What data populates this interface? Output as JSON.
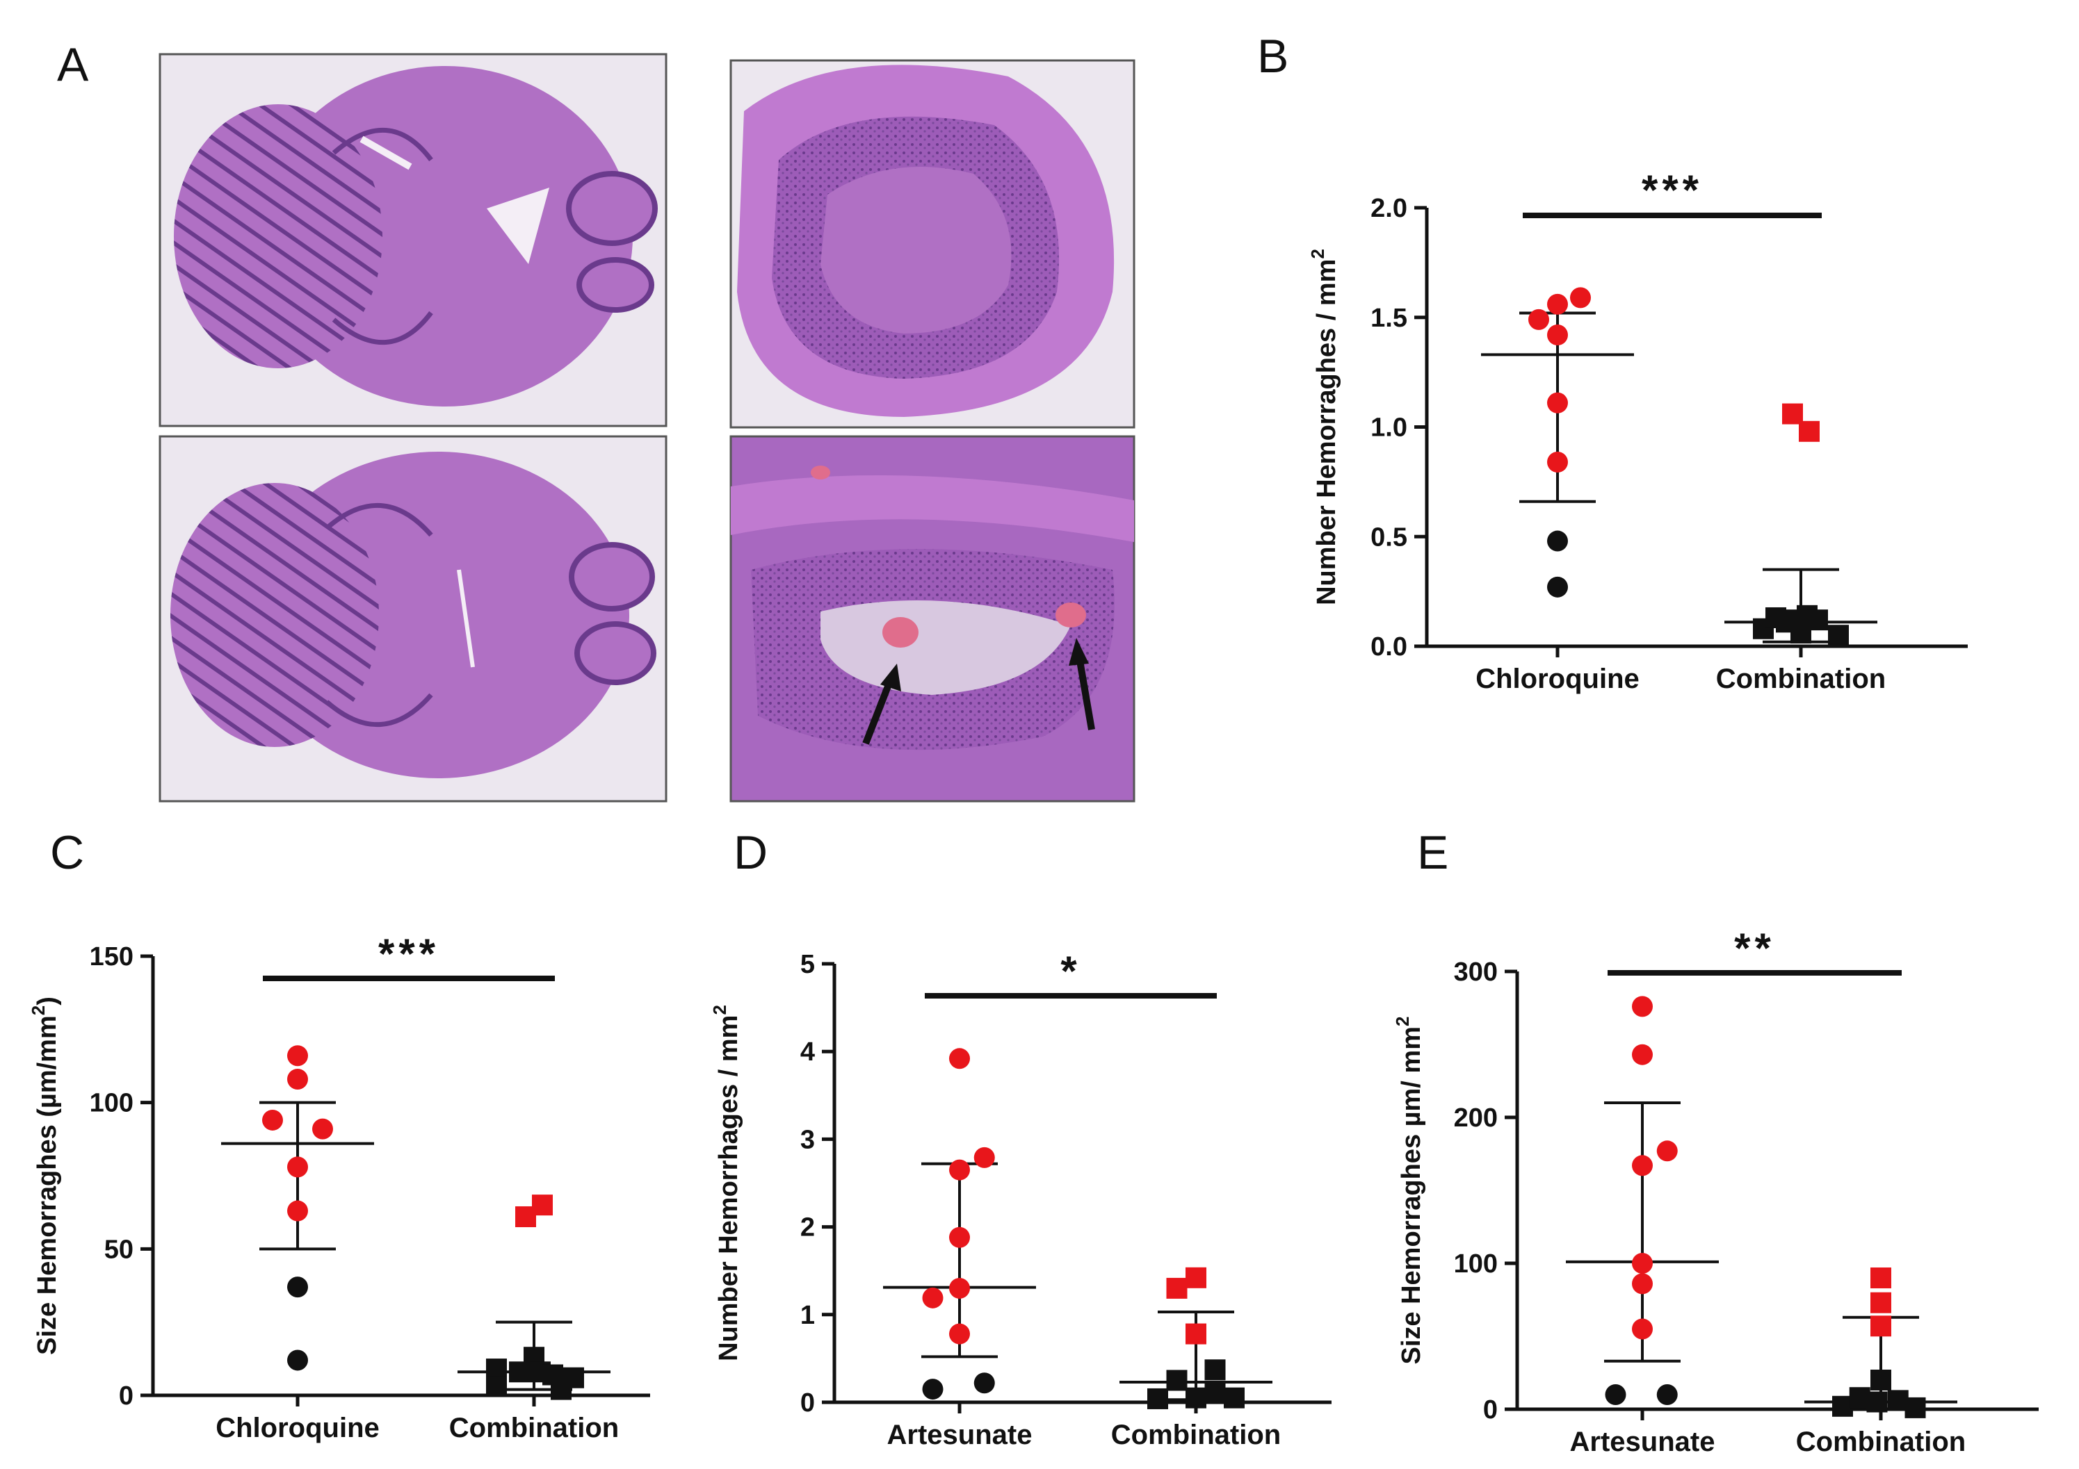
{
  "figure": {
    "panel_letters": [
      "A",
      "B",
      "C",
      "D",
      "E"
    ],
    "histology": {
      "tissue_colors": {
        "background": "#ece7ef",
        "tissue": "#b070c4",
        "dark": "#6a3a8c",
        "hemorrhage": "#e06d8c"
      },
      "images": [
        "whole-brain-section-top",
        "cerebellum-magnified-top",
        "whole-brain-section-bottom",
        "cerebellum-magnified-hemorrhage"
      ]
    }
  },
  "colors": {
    "red": "#e8161b",
    "black": "#111111",
    "axis": "#111111"
  },
  "chart_data": [
    {
      "panel": "B",
      "type": "scatter",
      "title": "",
      "ylabel": "Number Hemorraghes / mm",
      "ylabel_sup": "2",
      "ylim": [
        0,
        2.0
      ],
      "yticks": [
        0.0,
        0.5,
        1.0,
        1.5,
        2.0
      ],
      "ytick_labels": [
        "0.0",
        "0.5",
        "1.0",
        "1.5",
        "2.0"
      ],
      "categories": [
        "Chloroquine",
        "Combination"
      ],
      "significance": "***",
      "groups": [
        {
          "category": "Chloroquine",
          "marker": "circle",
          "mean": 1.33,
          "err_low": 0.66,
          "err_high": 1.52,
          "points": [
            {
              "y": 1.49,
              "color": "red",
              "dx": -0.45
            },
            {
              "y": 1.56,
              "color": "red",
              "dx": 0.0
            },
            {
              "y": 1.59,
              "color": "red",
              "dx": 0.55
            },
            {
              "y": 1.42,
              "color": "red",
              "dx": 0.0
            },
            {
              "y": 1.11,
              "color": "red",
              "dx": 0.0
            },
            {
              "y": 0.84,
              "color": "red",
              "dx": 0.0
            },
            {
              "y": 0.48,
              "color": "black",
              "dx": 0.0
            },
            {
              "y": 0.27,
              "color": "black",
              "dx": 0.0
            }
          ]
        },
        {
          "category": "Combination",
          "marker": "square",
          "mean": 0.11,
          "err_low": 0.02,
          "err_high": 0.35,
          "points": [
            {
              "y": 1.06,
              "color": "red",
              "dx": -0.2
            },
            {
              "y": 0.98,
              "color": "red",
              "dx": 0.2
            },
            {
              "y": 0.08,
              "color": "black",
              "dx": -0.9
            },
            {
              "y": 0.13,
              "color": "black",
              "dx": -0.6
            },
            {
              "y": 0.11,
              "color": "black",
              "dx": -0.35
            },
            {
              "y": 0.12,
              "color": "black",
              "dx": -0.1
            },
            {
              "y": 0.14,
              "color": "black",
              "dx": 0.15
            },
            {
              "y": 0.12,
              "color": "black",
              "dx": 0.4
            },
            {
              "y": 0.06,
              "color": "black",
              "dx": 0.0
            },
            {
              "y": 0.05,
              "color": "black",
              "dx": 0.9
            }
          ]
        }
      ]
    },
    {
      "panel": "C",
      "type": "scatter",
      "title": "",
      "ylabel": "Size Hemorraghes (µm/mm",
      "ylabel_sup": "2",
      "ylabel_suffix": ")",
      "ylim": [
        0,
        150
      ],
      "yticks": [
        0,
        50,
        100,
        150
      ],
      "ytick_labels": [
        "0",
        "50",
        "100",
        "150"
      ],
      "categories": [
        "Chloroquine",
        "Combination"
      ],
      "significance": "***",
      "groups": [
        {
          "category": "Chloroquine",
          "marker": "circle",
          "mean": 86,
          "err_low": 50,
          "err_high": 100,
          "points": [
            {
              "y": 116,
              "color": "red",
              "dx": 0.0
            },
            {
              "y": 108,
              "color": "red",
              "dx": 0.0
            },
            {
              "y": 94,
              "color": "red",
              "dx": -0.6
            },
            {
              "y": 91,
              "color": "red",
              "dx": 0.6
            },
            {
              "y": 78,
              "color": "red",
              "dx": 0.0
            },
            {
              "y": 63,
              "color": "red",
              "dx": 0.0
            },
            {
              "y": 37,
              "color": "black",
              "dx": 0.0
            },
            {
              "y": 12,
              "color": "black",
              "dx": 0.0
            }
          ]
        },
        {
          "category": "Combination",
          "marker": "square",
          "mean": 8,
          "err_low": 2,
          "err_high": 25,
          "points": [
            {
              "y": 61,
              "color": "red",
              "dx": -0.2
            },
            {
              "y": 65,
              "color": "red",
              "dx": 0.2
            },
            {
              "y": 9,
              "color": "black",
              "dx": -0.9
            },
            {
              "y": 3,
              "color": "black",
              "dx": -0.9
            },
            {
              "y": 8,
              "color": "black",
              "dx": -0.35
            },
            {
              "y": 13,
              "color": "black",
              "dx": 0.0
            },
            {
              "y": 8,
              "color": "black",
              "dx": 0.15
            },
            {
              "y": 7,
              "color": "black",
              "dx": 0.45
            },
            {
              "y": 2,
              "color": "black",
              "dx": 0.65
            },
            {
              "y": 6,
              "color": "black",
              "dx": 0.95
            }
          ]
        }
      ]
    },
    {
      "panel": "D",
      "type": "scatter",
      "title": "",
      "ylabel": "Number Hemorrhages / mm",
      "ylabel_sup": "2",
      "ylim": [
        0,
        5
      ],
      "yticks": [
        0,
        1,
        2,
        3,
        4,
        5
      ],
      "ytick_labels": [
        "0",
        "1",
        "2",
        "3",
        "4",
        "5"
      ],
      "categories": [
        "Artesunate",
        "Combination"
      ],
      "significance": "*",
      "groups": [
        {
          "category": "Artesunate",
          "marker": "circle",
          "mean": 1.31,
          "err_low": 0.52,
          "err_high": 2.72,
          "points": [
            {
              "y": 3.92,
              "color": "red",
              "dx": 0.0
            },
            {
              "y": 2.79,
              "color": "red",
              "dx": 0.65
            },
            {
              "y": 2.65,
              "color": "red",
              "dx": 0.0
            },
            {
              "y": 1.88,
              "color": "red",
              "dx": 0.0
            },
            {
              "y": 1.3,
              "color": "red",
              "dx": 0.0
            },
            {
              "y": 1.19,
              "color": "red",
              "dx": -0.7
            },
            {
              "y": 0.78,
              "color": "red",
              "dx": 0.0
            },
            {
              "y": 0.15,
              "color": "black",
              "dx": -0.7
            },
            {
              "y": 0.22,
              "color": "black",
              "dx": 0.65
            }
          ]
        },
        {
          "category": "Combination",
          "marker": "square",
          "mean": 0.23,
          "err_low": 0.03,
          "err_high": 1.03,
          "points": [
            {
              "y": 1.42,
              "color": "red",
              "dx": 0.0
            },
            {
              "y": 1.3,
              "color": "red",
              "dx": -0.5
            },
            {
              "y": 0.78,
              "color": "red",
              "dx": 0.0
            },
            {
              "y": 0.04,
              "color": "black",
              "dx": -1.0
            },
            {
              "y": 0.25,
              "color": "black",
              "dx": -0.5
            },
            {
              "y": 0.05,
              "color": "black",
              "dx": 0.0
            },
            {
              "y": 0.37,
              "color": "black",
              "dx": 0.5
            },
            {
              "y": 0.12,
              "color": "black",
              "dx": 0.5
            },
            {
              "y": 0.05,
              "color": "black",
              "dx": 1.0
            }
          ]
        }
      ]
    },
    {
      "panel": "E",
      "type": "scatter",
      "title": "",
      "ylabel": "Size Hemorraghes µm/ mm",
      "ylabel_sup": "2",
      "ylim": [
        0,
        300
      ],
      "yticks": [
        0,
        100,
        200,
        300
      ],
      "ytick_labels": [
        "0",
        "100",
        "200",
        "300"
      ],
      "categories": [
        "Artesunate",
        "Combination"
      ],
      "significance": "**",
      "groups": [
        {
          "category": "Artesunate",
          "marker": "circle",
          "mean": 101,
          "err_low": 33,
          "err_high": 210,
          "points": [
            {
              "y": 276,
              "color": "red",
              "dx": 0.0
            },
            {
              "y": 243,
              "color": "red",
              "dx": 0.0
            },
            {
              "y": 177,
              "color": "red",
              "dx": 0.65
            },
            {
              "y": 167,
              "color": "red",
              "dx": 0.0
            },
            {
              "y": 100,
              "color": "red",
              "dx": 0.0
            },
            {
              "y": 86,
              "color": "red",
              "dx": 0.0
            },
            {
              "y": 55,
              "color": "red",
              "dx": 0.0
            },
            {
              "y": 10,
              "color": "black",
              "dx": -0.7
            },
            {
              "y": 10,
              "color": "black",
              "dx": 0.65
            }
          ]
        },
        {
          "category": "Combination",
          "marker": "square",
          "mean": 5,
          "err_low": 0,
          "err_high": 63,
          "points": [
            {
              "y": 90,
              "color": "red",
              "dx": 0.0
            },
            {
              "y": 73,
              "color": "red",
              "dx": 0.0
            },
            {
              "y": 57,
              "color": "red",
              "dx": 0.0
            },
            {
              "y": 2,
              "color": "black",
              "dx": -1.0
            },
            {
              "y": 8,
              "color": "black",
              "dx": -0.55
            },
            {
              "y": 20,
              "color": "black",
              "dx": 0.0
            },
            {
              "y": 5,
              "color": "black",
              "dx": -0.1
            },
            {
              "y": 6,
              "color": "black",
              "dx": 0.45
            },
            {
              "y": 1,
              "color": "black",
              "dx": 0.9
            }
          ]
        }
      ]
    }
  ]
}
